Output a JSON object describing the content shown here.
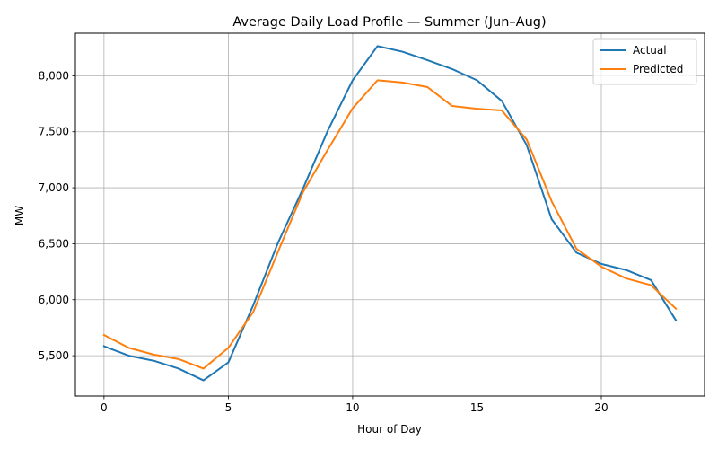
{
  "chart_data": {
    "type": "line",
    "title": "Average Daily Load Profile — Summer (Jun–Aug)",
    "xlabel": "Hour of Day",
    "ylabel": "MW",
    "xlim": [
      -1.15,
      24.15
    ],
    "ylim": [
      5140,
      8380
    ],
    "xticks": [
      0,
      5,
      10,
      15,
      20
    ],
    "xtick_labels": [
      "0",
      "5",
      "10",
      "15",
      "20"
    ],
    "yticks": [
      5500,
      6000,
      6500,
      7000,
      7500,
      8000
    ],
    "ytick_labels": [
      "5,500",
      "6,000",
      "6,500",
      "7,000",
      "7,500",
      "8,000"
    ],
    "grid": true,
    "legend_position": "top-right",
    "x": [
      0,
      1,
      2,
      3,
      4,
      5,
      6,
      7,
      8,
      9,
      10,
      11,
      12,
      13,
      14,
      15,
      16,
      17,
      18,
      19,
      20,
      21,
      22,
      23
    ],
    "series": [
      {
        "name": "Actual",
        "color": "#1f77b4",
        "values": [
          5585,
          5500,
          5455,
          5385,
          5280,
          5440,
          5950,
          6510,
          6990,
          7510,
          7960,
          8265,
          8215,
          8140,
          8060,
          7960,
          7775,
          7380,
          6720,
          6420,
          6320,
          6265,
          6175,
          5815
        ]
      },
      {
        "name": "Predicted",
        "color": "#ff7f0e",
        "values": [
          5685,
          5570,
          5510,
          5470,
          5385,
          5570,
          5890,
          6430,
          6960,
          7340,
          7710,
          7960,
          7940,
          7900,
          7730,
          7705,
          7690,
          7430,
          6880,
          6455,
          6295,
          6190,
          6130,
          5920
        ]
      }
    ]
  }
}
